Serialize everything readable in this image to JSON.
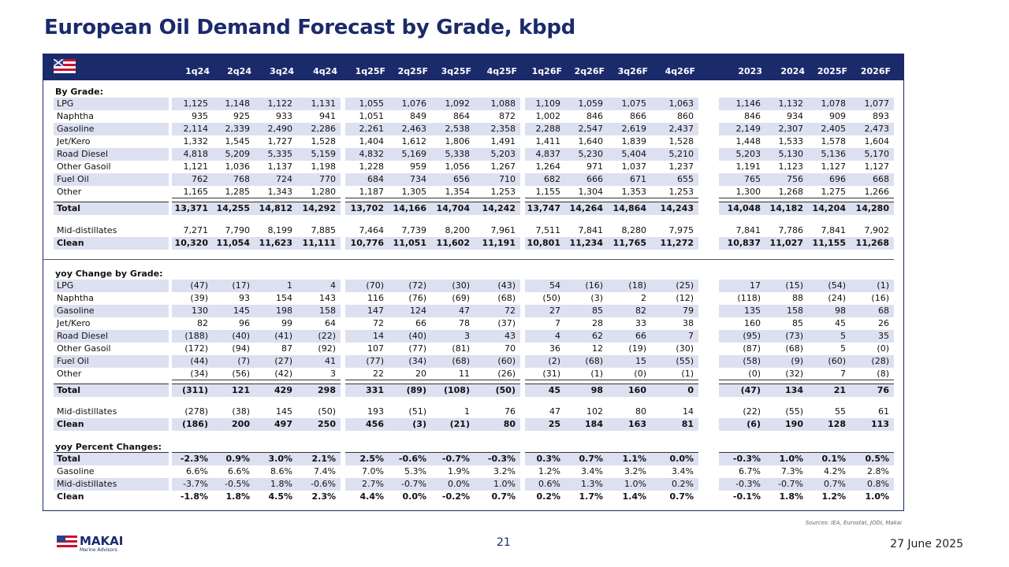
{
  "title": "European Oil Demand Forecast by Grade, kbpd",
  "table": {
    "columns": [
      "1q24",
      "2q24",
      "3q24",
      "4q24",
      "1q25F",
      "2q25F",
      "3q25F",
      "4q25F",
      "1q26F",
      "2q26F",
      "3q26F",
      "4q26F",
      "2023",
      "2024",
      "2025F",
      "2026F"
    ],
    "sections": [
      {
        "heading": "By Grade:",
        "rows": [
          {
            "label": "LPG",
            "values": [
              "1,125",
              "1,148",
              "1,122",
              "1,131",
              "1,055",
              "1,076",
              "1,092",
              "1,088",
              "1,109",
              "1,059",
              "1,075",
              "1,063",
              "1,146",
              "1,132",
              "1,078",
              "1,077"
            ]
          },
          {
            "label": "Naphtha",
            "values": [
              "935",
              "925",
              "933",
              "941",
              "1,051",
              "849",
              "864",
              "872",
              "1,002",
              "846",
              "866",
              "860",
              "846",
              "934",
              "909",
              "893"
            ]
          },
          {
            "label": "Gasoline",
            "values": [
              "2,114",
              "2,339",
              "2,490",
              "2,286",
              "2,261",
              "2,463",
              "2,538",
              "2,358",
              "2,288",
              "2,547",
              "2,619",
              "2,437",
              "2,149",
              "2,307",
              "2,405",
              "2,473"
            ]
          },
          {
            "label": "Jet/Kero",
            "values": [
              "1,332",
              "1,545",
              "1,727",
              "1,528",
              "1,404",
              "1,612",
              "1,806",
              "1,491",
              "1,411",
              "1,640",
              "1,839",
              "1,528",
              "1,448",
              "1,533",
              "1,578",
              "1,604"
            ]
          },
          {
            "label": "Road Diesel",
            "values": [
              "4,818",
              "5,209",
              "5,335",
              "5,159",
              "4,832",
              "5,169",
              "5,338",
              "5,203",
              "4,837",
              "5,230",
              "5,404",
              "5,210",
              "5,203",
              "5,130",
              "5,136",
              "5,170"
            ]
          },
          {
            "label": "Other Gasoil",
            "values": [
              "1,121",
              "1,036",
              "1,137",
              "1,198",
              "1,228",
              "959",
              "1,056",
              "1,267",
              "1,264",
              "971",
              "1,037",
              "1,237",
              "1,191",
              "1,123",
              "1,127",
              "1,127"
            ]
          },
          {
            "label": "Fuel Oil",
            "values": [
              "762",
              "768",
              "724",
              "770",
              "684",
              "734",
              "656",
              "710",
              "682",
              "666",
              "671",
              "655",
              "765",
              "756",
              "696",
              "668"
            ]
          },
          {
            "label": "Other",
            "values": [
              "1,165",
              "1,285",
              "1,343",
              "1,280",
              "1,187",
              "1,305",
              "1,354",
              "1,253",
              "1,155",
              "1,304",
              "1,353",
              "1,253",
              "1,300",
              "1,268",
              "1,275",
              "1,266"
            ]
          },
          {
            "label": "Total",
            "values": [
              "13,371",
              "14,255",
              "14,812",
              "14,292",
              "13,702",
              "14,166",
              "14,704",
              "14,242",
              "13,747",
              "14,264",
              "14,864",
              "14,243",
              "14,048",
              "14,182",
              "14,204",
              "14,280"
            ]
          },
          {
            "label": "Mid-distillates",
            "values": [
              "7,271",
              "7,790",
              "8,199",
              "7,885",
              "7,464",
              "7,739",
              "8,200",
              "7,961",
              "7,511",
              "7,841",
              "8,280",
              "7,975",
              "7,841",
              "7,786",
              "7,841",
              "7,902"
            ]
          },
          {
            "label": "Clean",
            "values": [
              "10,320",
              "11,054",
              "11,623",
              "11,111",
              "10,776",
              "11,051",
              "11,602",
              "11,191",
              "10,801",
              "11,234",
              "11,765",
              "11,272",
              "10,837",
              "11,027",
              "11,155",
              "11,268"
            ]
          }
        ]
      },
      {
        "heading": "yoy Change by Grade:",
        "rows": [
          {
            "label": "LPG",
            "values": [
              "(47)",
              "(17)",
              "1",
              "4",
              "(70)",
              "(72)",
              "(30)",
              "(43)",
              "54",
              "(16)",
              "(18)",
              "(25)",
              "17",
              "(15)",
              "(54)",
              "(1)"
            ]
          },
          {
            "label": "Naphtha",
            "values": [
              "(39)",
              "93",
              "154",
              "143",
              "116",
              "(76)",
              "(69)",
              "(68)",
              "(50)",
              "(3)",
              "2",
              "(12)",
              "(118)",
              "88",
              "(24)",
              "(16)"
            ]
          },
          {
            "label": "Gasoline",
            "values": [
              "130",
              "145",
              "198",
              "158",
              "147",
              "124",
              "47",
              "72",
              "27",
              "85",
              "82",
              "79",
              "135",
              "158",
              "98",
              "68"
            ]
          },
          {
            "label": "Jet/Kero",
            "values": [
              "82",
              "96",
              "99",
              "64",
              "72",
              "66",
              "78",
              "(37)",
              "7",
              "28",
              "33",
              "38",
              "160",
              "85",
              "45",
              "26"
            ]
          },
          {
            "label": "Road Diesel",
            "values": [
              "(188)",
              "(40)",
              "(41)",
              "(22)",
              "14",
              "(40)",
              "3",
              "43",
              "4",
              "62",
              "66",
              "7",
              "(95)",
              "(73)",
              "5",
              "35"
            ]
          },
          {
            "label": "Other Gasoil",
            "values": [
              "(172)",
              "(94)",
              "87",
              "(92)",
              "107",
              "(77)",
              "(81)",
              "70",
              "36",
              "12",
              "(19)",
              "(30)",
              "(87)",
              "(68)",
              "5",
              "(0)"
            ]
          },
          {
            "label": "Fuel Oil",
            "values": [
              "(44)",
              "(7)",
              "(27)",
              "41",
              "(77)",
              "(34)",
              "(68)",
              "(60)",
              "(2)",
              "(68)",
              "15",
              "(55)",
              "(58)",
              "(9)",
              "(60)",
              "(28)"
            ]
          },
          {
            "label": "Other",
            "values": [
              "(34)",
              "(56)",
              "(42)",
              "3",
              "22",
              "20",
              "11",
              "(26)",
              "(31)",
              "(1)",
              "(0)",
              "(1)",
              "(0)",
              "(32)",
              "7",
              "(8)"
            ]
          },
          {
            "label": "Total",
            "values": [
              "(311)",
              "121",
              "429",
              "298",
              "331",
              "(89)",
              "(108)",
              "(50)",
              "45",
              "98",
              "160",
              "0",
              "(47)",
              "134",
              "21",
              "76"
            ]
          },
          {
            "label": "Mid-distillates",
            "values": [
              "(278)",
              "(38)",
              "145",
              "(50)",
              "193",
              "(51)",
              "1",
              "76",
              "47",
              "102",
              "80",
              "14",
              "(22)",
              "(55)",
              "55",
              "61"
            ]
          },
          {
            "label": "Clean",
            "values": [
              "(186)",
              "200",
              "497",
              "250",
              "456",
              "(3)",
              "(21)",
              "80",
              "25",
              "184",
              "163",
              "81",
              "(6)",
              "190",
              "128",
              "113"
            ]
          }
        ]
      },
      {
        "heading": "yoy Percent Changes:",
        "rows": [
          {
            "label": "Total",
            "values": [
              "-2.3%",
              "0.9%",
              "3.0%",
              "2.1%",
              "2.5%",
              "-0.6%",
              "-0.7%",
              "-0.3%",
              "0.3%",
              "0.7%",
              "1.1%",
              "0.0%",
              "-0.3%",
              "1.0%",
              "0.1%",
              "0.5%"
            ]
          },
          {
            "label": "Gasoline",
            "values": [
              "6.6%",
              "6.6%",
              "8.6%",
              "7.4%",
              "7.0%",
              "5.3%",
              "1.9%",
              "3.2%",
              "1.2%",
              "3.4%",
              "3.2%",
              "3.4%",
              "6.7%",
              "7.3%",
              "4.2%",
              "2.8%"
            ]
          },
          {
            "label": "Mid-distillates",
            "values": [
              "-3.7%",
              "-0.5%",
              "1.8%",
              "-0.6%",
              "2.7%",
              "-0.7%",
              "0.0%",
              "1.0%",
              "0.6%",
              "1.3%",
              "1.0%",
              "0.2%",
              "-0.3%",
              "-0.7%",
              "0.7%",
              "0.8%"
            ]
          },
          {
            "label": "Clean",
            "values": [
              "-1.8%",
              "1.8%",
              "4.5%",
              "2.3%",
              "4.4%",
              "0.0%",
              "-0.2%",
              "0.7%",
              "0.2%",
              "1.7%",
              "1.4%",
              "0.7%",
              "-0.1%",
              "1.8%",
              "1.2%",
              "1.0%"
            ]
          }
        ]
      }
    ]
  },
  "footer": {
    "sources": "Sources: IEA, Eurostat, JODI, Makai",
    "page": "21",
    "date": "27 June 2025",
    "logo": "MAKAI",
    "logo_sub": "Marine Advisors"
  }
}
